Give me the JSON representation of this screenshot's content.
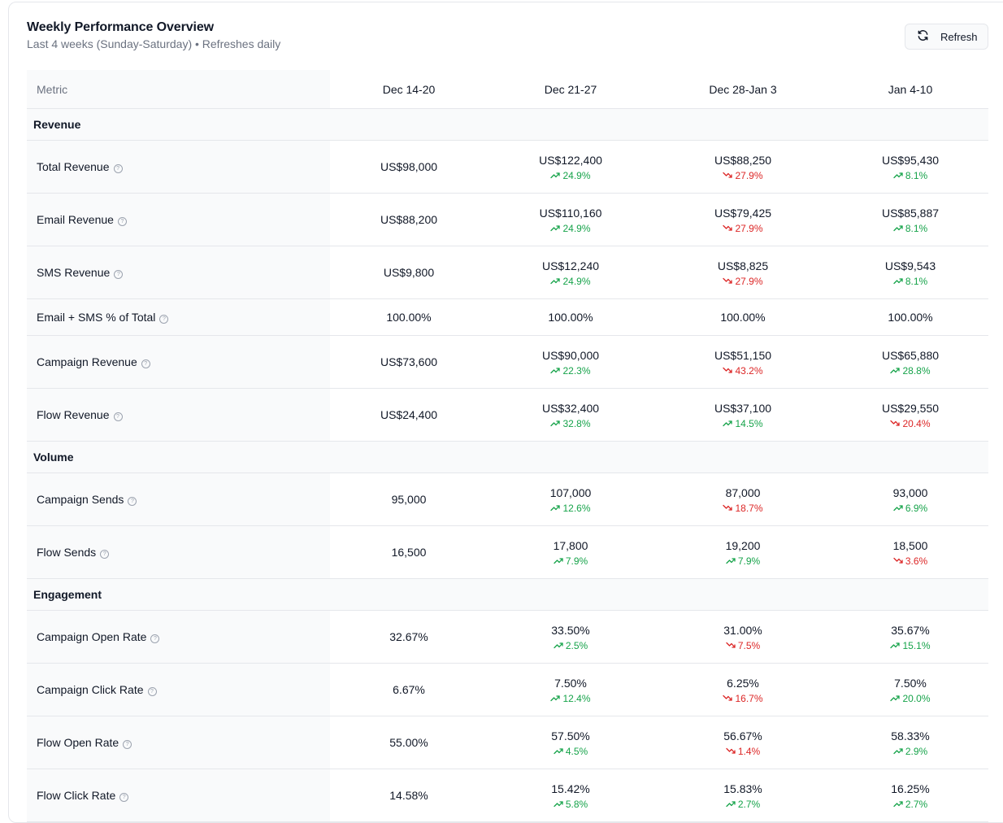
{
  "header": {
    "title": "Weekly Performance Overview",
    "subtitle": "Last 4 weeks (Sunday-Saturday) • Refreshes daily",
    "refresh_label": "Refresh"
  },
  "table": {
    "metric_header": "Metric",
    "weeks": [
      "Dec 14-20",
      "Dec 21-27",
      "Dec 28-Jan 3",
      "Jan 4-10"
    ],
    "help_glyph": "?",
    "sections": [
      {
        "title": "Revenue",
        "rows": [
          {
            "metric": "Total Revenue",
            "cells": [
              {
                "value": "US$98,000"
              },
              {
                "value": "US$122,400",
                "change": "24.9%",
                "dir": "up"
              },
              {
                "value": "US$88,250",
                "change": "27.9%",
                "dir": "down"
              },
              {
                "value": "US$95,430",
                "change": "8.1%",
                "dir": "up"
              }
            ]
          },
          {
            "metric": "Email Revenue",
            "cells": [
              {
                "value": "US$88,200"
              },
              {
                "value": "US$110,160",
                "change": "24.9%",
                "dir": "up"
              },
              {
                "value": "US$79,425",
                "change": "27.9%",
                "dir": "down"
              },
              {
                "value": "US$85,887",
                "change": "8.1%",
                "dir": "up"
              }
            ]
          },
          {
            "metric": "SMS Revenue",
            "cells": [
              {
                "value": "US$9,800"
              },
              {
                "value": "US$12,240",
                "change": "24.9%",
                "dir": "up"
              },
              {
                "value": "US$8,825",
                "change": "27.9%",
                "dir": "down"
              },
              {
                "value": "US$9,543",
                "change": "8.1%",
                "dir": "up"
              }
            ]
          },
          {
            "metric": "Email + SMS % of Total",
            "short": true,
            "cells": [
              {
                "value": "100.00%"
              },
              {
                "value": "100.00%"
              },
              {
                "value": "100.00%"
              },
              {
                "value": "100.00%"
              }
            ]
          },
          {
            "metric": "Campaign Revenue",
            "cells": [
              {
                "value": "US$73,600"
              },
              {
                "value": "US$90,000",
                "change": "22.3%",
                "dir": "up"
              },
              {
                "value": "US$51,150",
                "change": "43.2%",
                "dir": "down"
              },
              {
                "value": "US$65,880",
                "change": "28.8%",
                "dir": "up"
              }
            ]
          },
          {
            "metric": "Flow Revenue",
            "cells": [
              {
                "value": "US$24,400"
              },
              {
                "value": "US$32,400",
                "change": "32.8%",
                "dir": "up"
              },
              {
                "value": "US$37,100",
                "change": "14.5%",
                "dir": "up"
              },
              {
                "value": "US$29,550",
                "change": "20.4%",
                "dir": "down"
              }
            ]
          }
        ]
      },
      {
        "title": "Volume",
        "rows": [
          {
            "metric": "Campaign Sends",
            "cells": [
              {
                "value": "95,000"
              },
              {
                "value": "107,000",
                "change": "12.6%",
                "dir": "up"
              },
              {
                "value": "87,000",
                "change": "18.7%",
                "dir": "down"
              },
              {
                "value": "93,000",
                "change": "6.9%",
                "dir": "up"
              }
            ]
          },
          {
            "metric": "Flow Sends",
            "cells": [
              {
                "value": "16,500"
              },
              {
                "value": "17,800",
                "change": "7.9%",
                "dir": "up"
              },
              {
                "value": "19,200",
                "change": "7.9%",
                "dir": "up"
              },
              {
                "value": "18,500",
                "change": "3.6%",
                "dir": "down"
              }
            ]
          }
        ]
      },
      {
        "title": "Engagement",
        "rows": [
          {
            "metric": "Campaign Open Rate",
            "cells": [
              {
                "value": "32.67%"
              },
              {
                "value": "33.50%",
                "change": "2.5%",
                "dir": "up"
              },
              {
                "value": "31.00%",
                "change": "7.5%",
                "dir": "down"
              },
              {
                "value": "35.67%",
                "change": "15.1%",
                "dir": "up"
              }
            ]
          },
          {
            "metric": "Campaign Click Rate",
            "cells": [
              {
                "value": "6.67%"
              },
              {
                "value": "7.50%",
                "change": "12.4%",
                "dir": "up"
              },
              {
                "value": "6.25%",
                "change": "16.7%",
                "dir": "down"
              },
              {
                "value": "7.50%",
                "change": "20.0%",
                "dir": "up"
              }
            ]
          },
          {
            "metric": "Flow Open Rate",
            "cells": [
              {
                "value": "55.00%"
              },
              {
                "value": "57.50%",
                "change": "4.5%",
                "dir": "up"
              },
              {
                "value": "56.67%",
                "change": "1.4%",
                "dir": "down"
              },
              {
                "value": "58.33%",
                "change": "2.9%",
                "dir": "up"
              }
            ]
          },
          {
            "metric": "Flow Click Rate",
            "cells": [
              {
                "value": "14.58%"
              },
              {
                "value": "15.42%",
                "change": "5.8%",
                "dir": "up"
              },
              {
                "value": "15.83%",
                "change": "2.7%",
                "dir": "up"
              },
              {
                "value": "16.25%",
                "change": "2.7%",
                "dir": "up"
              }
            ]
          }
        ]
      }
    ]
  },
  "colors": {
    "up": "#16a34a",
    "down": "#dc2626",
    "muted": "#6b7280",
    "border": "#e5e7eb",
    "header_bg": "#f9fafb"
  }
}
